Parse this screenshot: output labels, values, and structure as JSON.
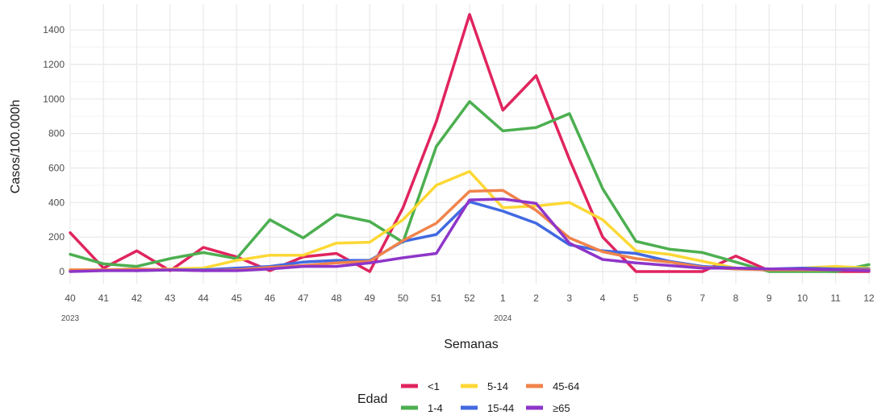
{
  "chart_data": {
    "type": "line",
    "xlabel": "Semanas",
    "ylabel": "Casos/100.000h",
    "ylim": [
      -70,
      1550
    ],
    "yticks": [
      0,
      200,
      400,
      600,
      800,
      1000,
      1200,
      1400
    ],
    "grid": true,
    "legend": {
      "title": "Edad",
      "placement": "bottom"
    },
    "categories": [
      "40",
      "41",
      "42",
      "43",
      "44",
      "45",
      "46",
      "47",
      "48",
      "49",
      "50",
      "51",
      "52",
      "1",
      "2",
      "3",
      "4",
      "5",
      "6",
      "7",
      "8",
      "9",
      "10",
      "11",
      "12"
    ],
    "year_labels": [
      {
        "text": "2023",
        "at": "40"
      },
      {
        "text": "2024",
        "at": "1"
      }
    ],
    "series": [
      {
        "name": "<1",
        "color": "#E0245E",
        "values": [
          225,
          20,
          120,
          5,
          140,
          85,
          5,
          85,
          105,
          0,
          370,
          870,
          1490,
          935,
          1135,
          650,
          200,
          0,
          0,
          0,
          90,
          5,
          5,
          0,
          0
        ]
      },
      {
        "name": "1-4",
        "color": "#4CAF50",
        "values": [
          100,
          45,
          30,
          75,
          110,
          75,
          300,
          195,
          330,
          290,
          170,
          725,
          985,
          815,
          835,
          915,
          480,
          175,
          130,
          110,
          55,
          0,
          0,
          0,
          40
        ]
      },
      {
        "name": "5-14",
        "color": "#FDD835",
        "values": [
          10,
          10,
          10,
          15,
          20,
          65,
          95,
          95,
          165,
          170,
          300,
          500,
          580,
          370,
          380,
          400,
          300,
          120,
          100,
          60,
          20,
          10,
          20,
          30,
          20
        ]
      },
      {
        "name": "15-44",
        "color": "#4169E1",
        "values": [
          5,
          10,
          5,
          10,
          10,
          20,
          30,
          55,
          65,
          65,
          175,
          215,
          405,
          350,
          280,
          155,
          120,
          105,
          60,
          30,
          20,
          15,
          20,
          15,
          15
        ]
      },
      {
        "name": "45-64",
        "color": "#F0834A",
        "values": [
          10,
          10,
          15,
          10,
          5,
          10,
          25,
          35,
          50,
          60,
          180,
          280,
          465,
          470,
          355,
          195,
          115,
          75,
          55,
          25,
          15,
          10,
          10,
          10,
          10
        ]
      },
      {
        "name": "≥65",
        "color": "#8E35C9",
        "values": [
          0,
          5,
          5,
          10,
          5,
          5,
          15,
          30,
          30,
          50,
          80,
          105,
          415,
          420,
          395,
          165,
          70,
          50,
          35,
          20,
          20,
          15,
          15,
          10,
          5
        ]
      }
    ]
  }
}
